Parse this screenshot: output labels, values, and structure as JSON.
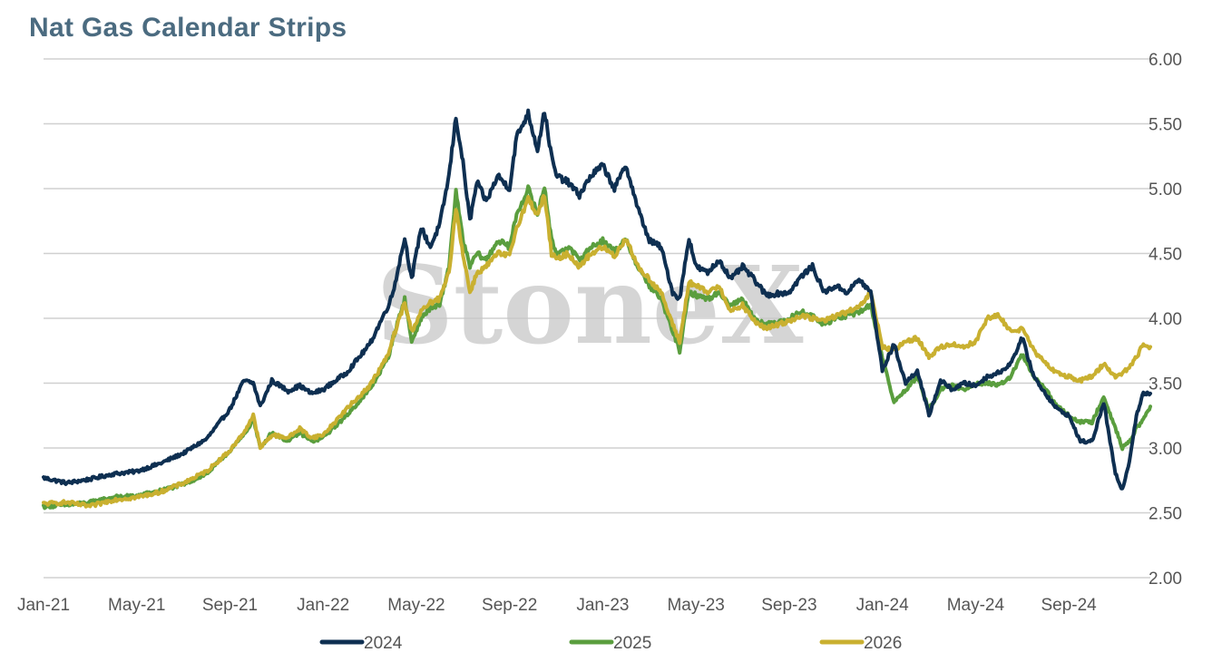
{
  "chart_data": {
    "type": "line",
    "title": "Nat Gas Calendar Strips",
    "watermark": "StoneX",
    "xlabel": "",
    "ylabel": "",
    "ylim": [
      2.0,
      6.0
    ],
    "y_ticks": [
      "6.00",
      "5.50",
      "5.00",
      "4.50",
      "4.00",
      "3.50",
      "3.00",
      "2.50",
      "2.00"
    ],
    "x_ticks": [
      "Jan-21",
      "May-21",
      "Sep-21",
      "Jan-22",
      "May-22",
      "Sep-22",
      "Jan-23",
      "May-23",
      "Sep-23",
      "Jan-24",
      "May-24",
      "Sep-24"
    ],
    "x_range_months": [
      0,
      47.5
    ],
    "grid": true,
    "legend_position": "bottom",
    "series": [
      {
        "name": "2024",
        "color": "#0e2f51",
        "points": [
          [
            0,
            2.77
          ],
          [
            1,
            2.73
          ],
          [
            2,
            2.76
          ],
          [
            3,
            2.8
          ],
          [
            4,
            2.82
          ],
          [
            5,
            2.88
          ],
          [
            6,
            2.96
          ],
          [
            7,
            3.07
          ],
          [
            8,
            3.3
          ],
          [
            8.6,
            3.52
          ],
          [
            9,
            3.5
          ],
          [
            9.3,
            3.32
          ],
          [
            9.8,
            3.52
          ],
          [
            10.5,
            3.44
          ],
          [
            11,
            3.48
          ],
          [
            11.5,
            3.42
          ],
          [
            12,
            3.45
          ],
          [
            13,
            3.58
          ],
          [
            14,
            3.8
          ],
          [
            14.8,
            4.1
          ],
          [
            15,
            4.2
          ],
          [
            15.5,
            4.62
          ],
          [
            15.8,
            4.3
          ],
          [
            16.2,
            4.7
          ],
          [
            16.6,
            4.55
          ],
          [
            17,
            4.72
          ],
          [
            17.4,
            5.1
          ],
          [
            17.7,
            5.55
          ],
          [
            18,
            5.2
          ],
          [
            18.3,
            4.75
          ],
          [
            18.6,
            5.05
          ],
          [
            19,
            4.9
          ],
          [
            19.5,
            5.1
          ],
          [
            20,
            5.0
          ],
          [
            20.3,
            5.4
          ],
          [
            20.8,
            5.58
          ],
          [
            21.2,
            5.3
          ],
          [
            21.5,
            5.6
          ],
          [
            21.8,
            5.25
          ],
          [
            22,
            5.1
          ],
          [
            22.5,
            5.05
          ],
          [
            23,
            4.95
          ],
          [
            23.5,
            5.1
          ],
          [
            24,
            5.18
          ],
          [
            24.5,
            5.0
          ],
          [
            25,
            5.18
          ],
          [
            25.5,
            4.85
          ],
          [
            26,
            4.6
          ],
          [
            26.5,
            4.55
          ],
          [
            27,
            4.2
          ],
          [
            27.3,
            4.15
          ],
          [
            27.7,
            4.62
          ],
          [
            28,
            4.4
          ],
          [
            28.5,
            4.35
          ],
          [
            29,
            4.45
          ],
          [
            29.5,
            4.3
          ],
          [
            30,
            4.4
          ],
          [
            30.5,
            4.3
          ],
          [
            31,
            4.18
          ],
          [
            32,
            4.2
          ],
          [
            32.5,
            4.32
          ],
          [
            33,
            4.4
          ],
          [
            33.5,
            4.2
          ],
          [
            34,
            4.25
          ],
          [
            34.5,
            4.2
          ],
          [
            35,
            4.3
          ],
          [
            35.5,
            4.2
          ],
          [
            36,
            3.6
          ],
          [
            36.5,
            3.8
          ],
          [
            37,
            3.5
          ],
          [
            37.5,
            3.6
          ],
          [
            38,
            3.25
          ],
          [
            38.5,
            3.52
          ],
          [
            39,
            3.45
          ],
          [
            39.5,
            3.5
          ],
          [
            40,
            3.48
          ],
          [
            40.5,
            3.55
          ],
          [
            41,
            3.58
          ],
          [
            41.5,
            3.65
          ],
          [
            42,
            3.85
          ],
          [
            42.5,
            3.55
          ],
          [
            43,
            3.42
          ],
          [
            43.5,
            3.3
          ],
          [
            44,
            3.25
          ],
          [
            44.5,
            3.05
          ],
          [
            45,
            3.05
          ],
          [
            45.5,
            3.35
          ],
          [
            46,
            2.8
          ],
          [
            46.3,
            2.68
          ],
          [
            46.6,
            2.9
          ],
          [
            46.9,
            3.25
          ],
          [
            47.2,
            3.42
          ],
          [
            47.5,
            3.42
          ]
        ]
      },
      {
        "name": "2025",
        "color": "#5a9e3e",
        "points": [
          [
            0,
            2.55
          ],
          [
            1,
            2.56
          ],
          [
            2,
            2.58
          ],
          [
            3,
            2.62
          ],
          [
            4,
            2.63
          ],
          [
            5,
            2.67
          ],
          [
            6,
            2.72
          ],
          [
            7,
            2.8
          ],
          [
            8,
            2.98
          ],
          [
            8.6,
            3.1
          ],
          [
            9,
            3.22
          ],
          [
            9.3,
            3.0
          ],
          [
            9.8,
            3.12
          ],
          [
            10.5,
            3.05
          ],
          [
            11,
            3.12
          ],
          [
            11.5,
            3.05
          ],
          [
            12,
            3.08
          ],
          [
            13,
            3.25
          ],
          [
            14,
            3.45
          ],
          [
            14.8,
            3.7
          ],
          [
            15,
            3.85
          ],
          [
            15.5,
            4.15
          ],
          [
            15.8,
            3.82
          ],
          [
            16.2,
            4.0
          ],
          [
            16.6,
            4.08
          ],
          [
            17,
            4.1
          ],
          [
            17.4,
            4.4
          ],
          [
            17.7,
            4.98
          ],
          [
            18,
            4.6
          ],
          [
            18.3,
            4.4
          ],
          [
            18.6,
            4.5
          ],
          [
            19,
            4.45
          ],
          [
            19.5,
            4.6
          ],
          [
            20,
            4.55
          ],
          [
            20.3,
            4.8
          ],
          [
            20.8,
            5.0
          ],
          [
            21.2,
            4.8
          ],
          [
            21.5,
            5.02
          ],
          [
            21.8,
            4.6
          ],
          [
            22,
            4.5
          ],
          [
            22.5,
            4.55
          ],
          [
            23,
            4.45
          ],
          [
            23.5,
            4.55
          ],
          [
            24,
            4.6
          ],
          [
            24.5,
            4.52
          ],
          [
            25,
            4.6
          ],
          [
            25.5,
            4.4
          ],
          [
            26,
            4.25
          ],
          [
            26.5,
            4.15
          ],
          [
            27,
            3.9
          ],
          [
            27.3,
            3.75
          ],
          [
            27.7,
            4.2
          ],
          [
            28,
            4.18
          ],
          [
            28.5,
            4.15
          ],
          [
            29,
            4.2
          ],
          [
            29.5,
            4.1
          ],
          [
            30,
            4.15
          ],
          [
            30.5,
            4.0
          ],
          [
            31,
            3.95
          ],
          [
            32,
            4.0
          ],
          [
            32.5,
            4.05
          ],
          [
            33,
            4.02
          ],
          [
            33.5,
            3.95
          ],
          [
            34,
            4.0
          ],
          [
            34.5,
            4.02
          ],
          [
            35,
            4.05
          ],
          [
            35.5,
            4.1
          ],
          [
            36,
            3.7
          ],
          [
            36.5,
            3.35
          ],
          [
            37,
            3.45
          ],
          [
            37.5,
            3.55
          ],
          [
            38,
            3.3
          ],
          [
            38.5,
            3.45
          ],
          [
            39,
            3.48
          ],
          [
            39.5,
            3.45
          ],
          [
            40,
            3.5
          ],
          [
            40.5,
            3.5
          ],
          [
            41,
            3.48
          ],
          [
            41.5,
            3.55
          ],
          [
            42,
            3.72
          ],
          [
            42.5,
            3.55
          ],
          [
            43,
            3.45
          ],
          [
            43.5,
            3.32
          ],
          [
            44,
            3.25
          ],
          [
            44.5,
            3.2
          ],
          [
            45,
            3.2
          ],
          [
            45.5,
            3.4
          ],
          [
            46,
            3.15
          ],
          [
            46.3,
            3.0
          ],
          [
            46.6,
            3.05
          ],
          [
            46.9,
            3.15
          ],
          [
            47.2,
            3.22
          ],
          [
            47.5,
            3.32
          ]
        ]
      },
      {
        "name": "2026",
        "color": "#c9b030",
        "points": [
          [
            0,
            2.57
          ],
          [
            1,
            2.58
          ],
          [
            2,
            2.55
          ],
          [
            3,
            2.6
          ],
          [
            4,
            2.62
          ],
          [
            5,
            2.66
          ],
          [
            6,
            2.73
          ],
          [
            7,
            2.82
          ],
          [
            8,
            2.98
          ],
          [
            8.6,
            3.12
          ],
          [
            9,
            3.25
          ],
          [
            9.3,
            3.0
          ],
          [
            9.8,
            3.1
          ],
          [
            10.5,
            3.08
          ],
          [
            11,
            3.15
          ],
          [
            11.5,
            3.08
          ],
          [
            12,
            3.1
          ],
          [
            13,
            3.3
          ],
          [
            14,
            3.48
          ],
          [
            14.8,
            3.72
          ],
          [
            15,
            3.85
          ],
          [
            15.5,
            4.12
          ],
          [
            15.8,
            3.9
          ],
          [
            16.2,
            4.05
          ],
          [
            16.6,
            4.12
          ],
          [
            17,
            4.15
          ],
          [
            17.4,
            4.35
          ],
          [
            17.7,
            4.85
          ],
          [
            18,
            4.5
          ],
          [
            18.3,
            4.2
          ],
          [
            18.6,
            4.35
          ],
          [
            19,
            4.4
          ],
          [
            19.5,
            4.5
          ],
          [
            20,
            4.48
          ],
          [
            20.3,
            4.7
          ],
          [
            20.8,
            4.92
          ],
          [
            21.2,
            4.8
          ],
          [
            21.5,
            4.95
          ],
          [
            21.8,
            4.5
          ],
          [
            22,
            4.45
          ],
          [
            22.5,
            4.5
          ],
          [
            23,
            4.4
          ],
          [
            23.5,
            4.5
          ],
          [
            24,
            4.55
          ],
          [
            24.5,
            4.48
          ],
          [
            25,
            4.62
          ],
          [
            25.5,
            4.4
          ],
          [
            26,
            4.3
          ],
          [
            26.5,
            4.2
          ],
          [
            27,
            3.95
          ],
          [
            27.3,
            3.82
          ],
          [
            27.7,
            4.28
          ],
          [
            28,
            4.25
          ],
          [
            28.5,
            4.2
          ],
          [
            29,
            4.25
          ],
          [
            29.5,
            4.05
          ],
          [
            30,
            4.1
          ],
          [
            30.5,
            3.98
          ],
          [
            31,
            3.92
          ],
          [
            32,
            3.98
          ],
          [
            32.5,
            4.02
          ],
          [
            33,
            4.0
          ],
          [
            33.5,
            3.98
          ],
          [
            34,
            4.02
          ],
          [
            34.5,
            4.05
          ],
          [
            35,
            4.08
          ],
          [
            35.5,
            4.2
          ],
          [
            36,
            3.78
          ],
          [
            36.5,
            3.75
          ],
          [
            37,
            3.82
          ],
          [
            37.5,
            3.85
          ],
          [
            38,
            3.7
          ],
          [
            38.5,
            3.78
          ],
          [
            39,
            3.8
          ],
          [
            39.5,
            3.78
          ],
          [
            40,
            3.82
          ],
          [
            40.5,
            4.0
          ],
          [
            41,
            4.02
          ],
          [
            41.5,
            3.9
          ],
          [
            42,
            3.92
          ],
          [
            42.5,
            3.75
          ],
          [
            43,
            3.65
          ],
          [
            43.5,
            3.58
          ],
          [
            44,
            3.55
          ],
          [
            44.5,
            3.52
          ],
          [
            45,
            3.55
          ],
          [
            45.5,
            3.65
          ],
          [
            46,
            3.55
          ],
          [
            46.3,
            3.58
          ],
          [
            46.6,
            3.62
          ],
          [
            46.9,
            3.7
          ],
          [
            47.2,
            3.8
          ],
          [
            47.5,
            3.78
          ]
        ]
      }
    ]
  }
}
